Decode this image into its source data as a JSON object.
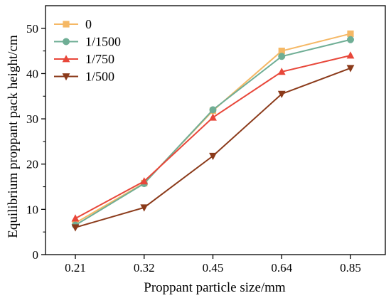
{
  "chart_data": {
    "type": "line",
    "title": "",
    "xlabel": "Proppant particle size/mm",
    "ylabel": "Equilibrium proppant pack height/cm",
    "categories": [
      "0.21",
      "0.32",
      "0.45",
      "0.64",
      "0.85"
    ],
    "ylim": [
      0,
      55
    ],
    "yticks": [
      0,
      10,
      20,
      30,
      40,
      50
    ],
    "grid": false,
    "legend_position": "top-left",
    "series": [
      {
        "name": "0",
        "values": [
          7.0,
          15.8,
          31.8,
          45.0,
          48.8
        ],
        "color": "#F5B865",
        "marker": "square"
      },
      {
        "name": "1/1500",
        "values": [
          6.5,
          15.7,
          32.0,
          43.8,
          47.5
        ],
        "color": "#6FAE95",
        "marker": "circle"
      },
      {
        "name": "1/750",
        "values": [
          8.0,
          16.2,
          30.3,
          40.4,
          44.0
        ],
        "color": "#E8473A",
        "marker": "triangle-up"
      },
      {
        "name": "1/500",
        "values": [
          6.0,
          10.4,
          21.8,
          35.5,
          41.2
        ],
        "color": "#8B3A1A",
        "marker": "triangle-down"
      }
    ]
  }
}
